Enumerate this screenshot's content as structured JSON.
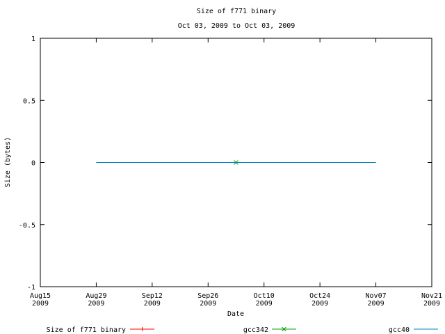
{
  "chart_data": {
    "type": "line",
    "title": "Size of f771 binary",
    "subtitle": "Oct 03, 2009 to Oct 03, 2009",
    "xlabel": "Date",
    "ylabel": "Size (bytes)",
    "xlim": [
      "2009-08-15",
      "2009-11-21"
    ],
    "ylim": [
      -1,
      1
    ],
    "yticks": [
      {
        "value": 1,
        "label": "1"
      },
      {
        "value": 0.5,
        "label": "0.5"
      },
      {
        "value": 0,
        "label": "0"
      },
      {
        "value": -0.5,
        "label": "-0.5"
      },
      {
        "value": -1,
        "label": "-1"
      }
    ],
    "xticks": [
      {
        "date": "2009-08-15",
        "line1": "Aug15",
        "line2": "2009"
      },
      {
        "date": "2009-08-29",
        "line1": "Aug29",
        "line2": "2009"
      },
      {
        "date": "2009-09-12",
        "line1": "Sep12",
        "line2": "2009"
      },
      {
        "date": "2009-09-26",
        "line1": "Sep26",
        "line2": "2009"
      },
      {
        "date": "2009-10-10",
        "line1": "Oct10",
        "line2": "2009"
      },
      {
        "date": "2009-10-24",
        "line1": "Oct24",
        "line2": "2009"
      },
      {
        "date": "2009-11-07",
        "line1": "Nov07",
        "line2": "2009"
      },
      {
        "date": "2009-11-21",
        "line1": "Nov21",
        "line2": "2009"
      }
    ],
    "grid": false,
    "legend_position": "bottom",
    "series": [
      {
        "name": "Size of f771 binary",
        "color": "#ff0000",
        "marker": "plus",
        "points": []
      },
      {
        "name": "gcc342",
        "color": "#00a000",
        "marker": "cross",
        "points": [
          {
            "x": "2009-10-03",
            "y": 0
          }
        ]
      },
      {
        "name": "gcc40",
        "color": "#0080c0",
        "marker": "none",
        "points": [
          {
            "x": "2009-08-29",
            "y": 0
          },
          {
            "x": "2009-11-07",
            "y": 0
          }
        ]
      }
    ]
  }
}
